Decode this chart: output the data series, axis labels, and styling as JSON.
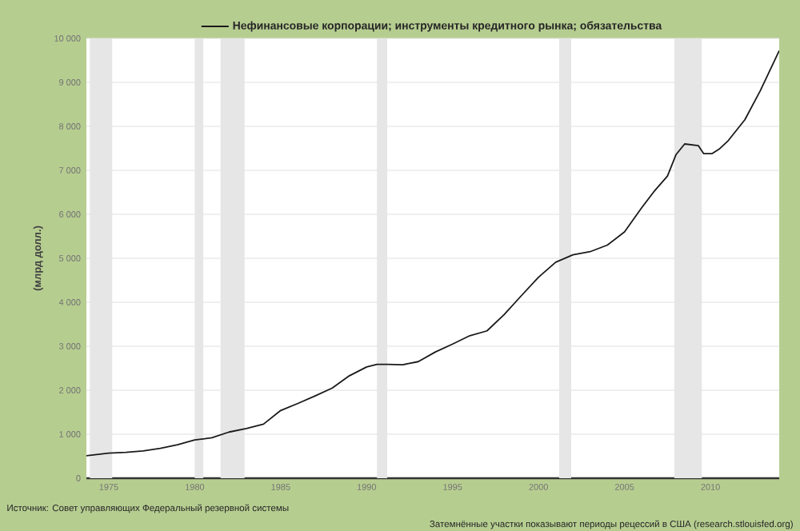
{
  "chart_data": {
    "type": "line",
    "ylabel": "(млрд долл.)",
    "x": [
      1973.7,
      1975,
      1976,
      1977,
      1978,
      1979,
      1980,
      1981,
      1982,
      1983,
      1984,
      1985,
      1986,
      1987,
      1988,
      1989,
      1990,
      1990.6,
      1991.2,
      1992.1,
      1993,
      1994,
      1995,
      1996,
      1997,
      1998,
      1999,
      2000,
      2001,
      2002,
      2003,
      2004,
      2005,
      2006,
      2006.7,
      2007.5,
      2008,
      2008.5,
      2009.3,
      2009.6,
      2010.1,
      2010.5,
      2011,
      2012,
      2012.9,
      2014
    ],
    "series": [
      {
        "name": "Нефинансовые корпорации; инструменты кредитного рынка; обязательства",
        "color": "#1a1a1a",
        "values": [
          510,
          570,
          590,
          620,
          680,
          760,
          870,
          920,
          1050,
          1130,
          1230,
          1540,
          1700,
          1870,
          2050,
          2330,
          2530,
          2590,
          2590,
          2580,
          2650,
          2870,
          3050,
          3240,
          3350,
          3720,
          4150,
          4570,
          4910,
          5080,
          5150,
          5300,
          5600,
          6150,
          6510,
          6870,
          7360,
          7600,
          7560,
          7380,
          7380,
          7480,
          7660,
          8150,
          8810,
          9720
        ]
      }
    ],
    "xlim": [
      1973.7,
      2014
    ],
    "ylim": [
      0,
      10000
    ],
    "xticks": [
      1975,
      1980,
      1985,
      1990,
      1995,
      2000,
      2005,
      2010
    ],
    "yticks": [
      {
        "value": 0,
        "label": "0"
      },
      {
        "value": 1000,
        "label": "1 000"
      },
      {
        "value": 2000,
        "label": "2 000"
      },
      {
        "value": 3000,
        "label": "3 000"
      },
      {
        "value": 4000,
        "label": "4 000"
      },
      {
        "value": 5000,
        "label": "5 000"
      },
      {
        "value": 6000,
        "label": "6 000"
      },
      {
        "value": 7000,
        "label": "7 000"
      },
      {
        "value": 8000,
        "label": "8 000"
      },
      {
        "value": 9000,
        "label": "9 000"
      },
      {
        "value": 10000,
        "label": "10 000"
      }
    ],
    "bands": [
      {
        "axis": "x",
        "from": 1973.9,
        "to": 1975.2,
        "color": "#e6e6e6"
      },
      {
        "axis": "x",
        "from": 1980.0,
        "to": 1980.5,
        "color": "#e6e6e6"
      },
      {
        "axis": "x",
        "from": 1981.5,
        "to": 1982.9,
        "color": "#e6e6e6"
      },
      {
        "axis": "x",
        "from": 1990.6,
        "to": 1991.2,
        "color": "#e6e6e6"
      },
      {
        "axis": "x",
        "from": 2001.2,
        "to": 2001.9,
        "color": "#e6e6e6"
      },
      {
        "axis": "x",
        "from": 2007.9,
        "to": 2009.5,
        "color": "#e6e6e6"
      }
    ],
    "grid": "y",
    "legend": "top",
    "annotations": [
      "Источник: Совет управляющих Федеральный резервной системы",
      "Затемнённые участки показывают периоды рецессий в США (research.stlouisfed.org)"
    ]
  }
}
